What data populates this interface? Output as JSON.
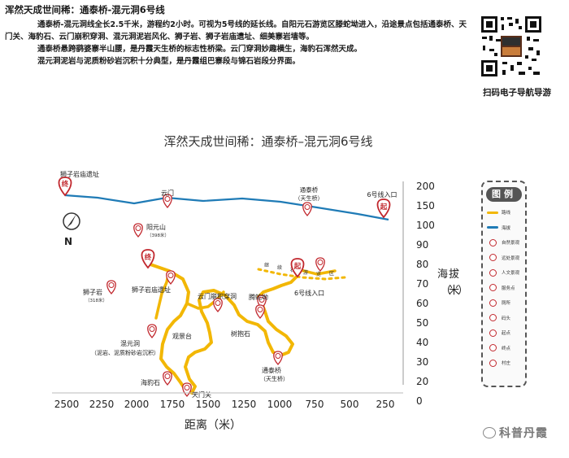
{
  "header": {
    "title": "浑然天成世间稀：通泰桥-混元洞6号线",
    "p1": "通泰桥-混元洞线全长2.5千米，游程约2小时。可视为5号线的延长线。自阳元石游览区滕蛇坳进入，沿途景点包括通泰桥、天门关、海豹石、云门崩积穿洞、混元洞泥岩风化、狮子岩、狮子岩庙遗址、细美寨岩墙等。",
    "p2": "通泰桥悬跨鹞婆寨半山腰，是丹霞天生桥的标志性桥梁。云门穿洞妙趣横生，海豹石浑然天成。",
    "p3": "混元洞泥岩与泥质粉砂岩沉积十分典型，是丹霞组巴寨段与锦石岩段分界面。"
  },
  "qr_caption": "扫码电子导航导游",
  "map": {
    "title": "浑然天成世间稀：通泰桥–混元洞6号线",
    "xlabel": "距离（米）",
    "ylabel_chars": [
      "海",
      "拔",
      "（",
      "米",
      "）"
    ],
    "x_ticks": [
      "2500",
      "2250",
      "2000",
      "1750",
      "1500",
      "1250",
      "1000",
      "750",
      "500",
      "250"
    ],
    "y_ticks": [
      "200",
      "150",
      "100",
      "90",
      "80",
      "70",
      "60",
      "50",
      "40",
      "30",
      "20",
      "0"
    ],
    "north": "N",
    "profile_labels": {
      "lion_ruins": "狮子岩庙遗址",
      "cloud_gate": "云门",
      "tongtai": "通泰桥",
      "tongtai_sub": "（天生桥）",
      "entrance": "6号线入口"
    },
    "pin_end": "终",
    "pin_start": "起",
    "spots": {
      "yangyuan": "阳元山",
      "yangyuan_alt": "（398米）",
      "lion_rock": "狮子岩",
      "lion_rock_alt": "（318米）",
      "lion_ruins": "狮子岩庙遗址",
      "cloud_cave": "云门崩积穿洞",
      "tengshe": "腾蛇坳",
      "entrance": "6号线入口",
      "lookout": "观景台",
      "hold_rock": "树抱石",
      "hunyuan": "混元洞",
      "hunyuan_sub": "（泥岩、泥质粉砂岩沉积）",
      "tongtai": "通泰桥",
      "tongtai_sub": "（天生桥）",
      "seal_rock": "海豹石",
      "tianmen": "天门关"
    },
    "dotted_chars": [
      "继",
      "续",
      "石",
      "游",
      "览",
      "区"
    ]
  },
  "legend": {
    "title": "图例",
    "items": [
      {
        "label": "路线",
        "kind": "line",
        "color": "#f2b705"
      },
      {
        "label": "海拔",
        "kind": "line",
        "color": "#1f7bb6"
      },
      {
        "label": "自然景观",
        "kind": "pin"
      },
      {
        "label": "远处景观",
        "kind": "pin"
      },
      {
        "label": "人文景观",
        "kind": "pin"
      },
      {
        "label": "服务点",
        "kind": "pin"
      },
      {
        "label": "厕所",
        "kind": "pin"
      },
      {
        "label": "码头",
        "kind": "pin"
      },
      {
        "label": "起点",
        "kind": "pin"
      },
      {
        "label": "终点",
        "kind": "pin"
      },
      {
        "label": "村庄",
        "kind": "pin"
      }
    ]
  },
  "watermark": "科普丹霞"
}
